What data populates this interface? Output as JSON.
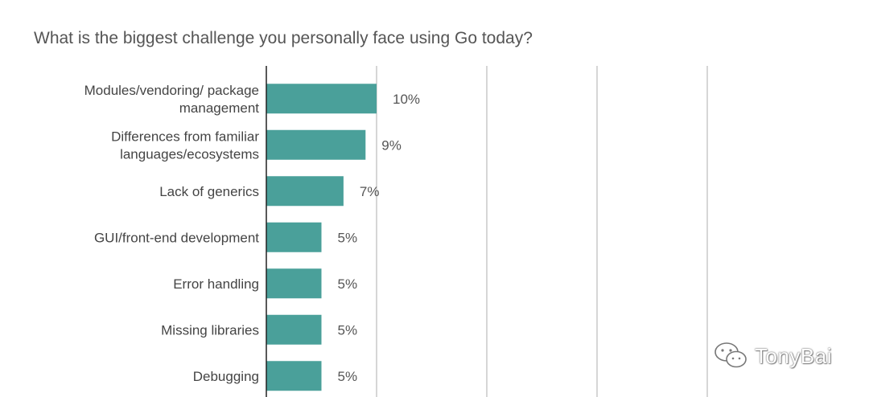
{
  "title": "What is the biggest challenge you personally face using Go today?",
  "watermark": "TonyBai",
  "colors": {
    "bar": "#4aa09a",
    "grid": "#c8c8c8",
    "axis": "#222222"
  },
  "chart_data": {
    "type": "bar",
    "orientation": "horizontal",
    "title": "What is the biggest challenge you personally face using Go today?",
    "categories": [
      [
        "Modules/vendoring/ package",
        "management"
      ],
      [
        "Differences from familiar",
        "languages/ecosystems"
      ],
      [
        "Lack of generics"
      ],
      [
        "GUI/front-end development"
      ],
      [
        "Error handling"
      ],
      [
        "Missing libraries"
      ],
      [
        "Debugging"
      ]
    ],
    "values": [
      10,
      9,
      7,
      5,
      5,
      5,
      5
    ],
    "data_labels": [
      "10%",
      "9%",
      "7%",
      "5%",
      "5%",
      "5%",
      "5%"
    ],
    "xlim": [
      0,
      50
    ],
    "grid": true
  }
}
